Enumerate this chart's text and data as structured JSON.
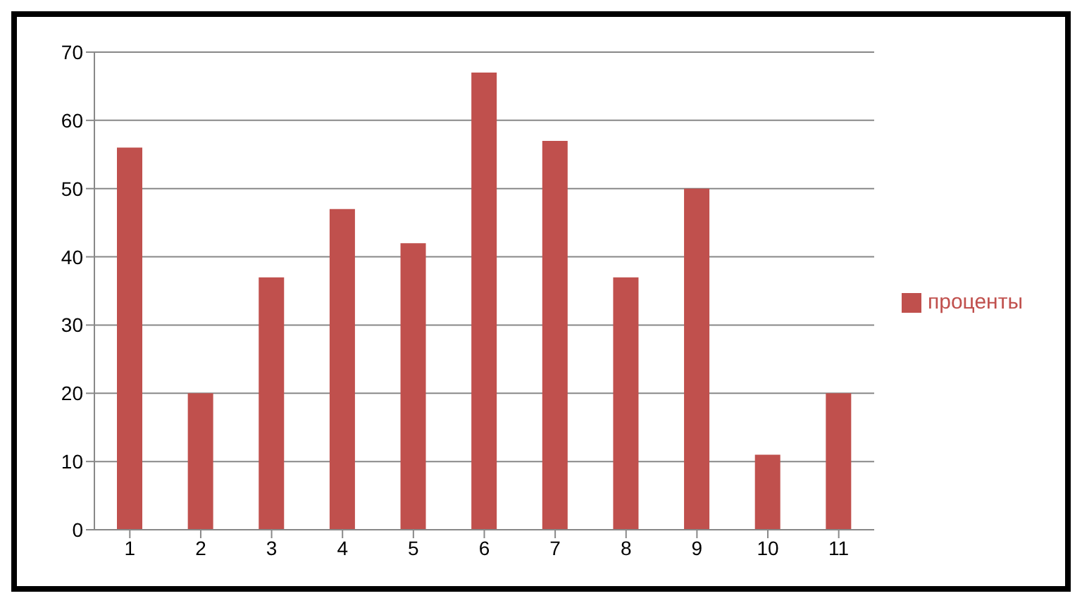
{
  "chart_data": {
    "type": "bar",
    "categories": [
      "1",
      "2",
      "3",
      "4",
      "5",
      "6",
      "7",
      "8",
      "9",
      "10",
      "11"
    ],
    "series": [
      {
        "name": "проценты",
        "color": "#c0504d",
        "values": [
          56,
          20,
          37,
          47,
          42,
          67,
          57,
          37,
          50,
          11,
          20
        ]
      }
    ],
    "ylim": [
      0,
      70
    ],
    "yticks": [
      0,
      10,
      20,
      30,
      40,
      50,
      60,
      70
    ],
    "grid": "y",
    "legend": "right"
  }
}
